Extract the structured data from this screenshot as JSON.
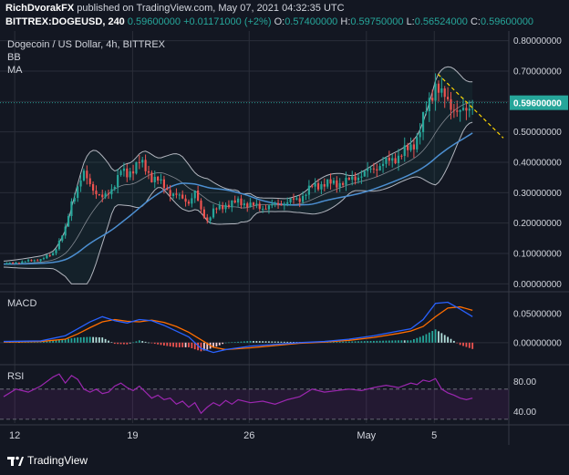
{
  "header": {
    "author": "RichDvorakFX",
    "published": "published on TradingView.com, May 07, 2021 04:32:35 UTC",
    "symbol": "BITTREX:DOGEUSD, 240",
    "price": "0.59600000",
    "change": "+0.01171000 (+2%)",
    "o_label": "O:",
    "o_value": "0.57400000",
    "h_label": "H:",
    "h_value": "0.59750000",
    "l_label": "L:",
    "l_value": "0.56524000",
    "c_label": "C:",
    "c_value": "0.59600000"
  },
  "footer": {
    "brand": "TradingView"
  },
  "colors": {
    "background": "#131722",
    "grid": "#2a2e39",
    "up": "#26a69a",
    "down": "#ef5350",
    "bb": "#b2b5be",
    "ma": "#4c8fd1",
    "macd": "#2962ff",
    "signal": "#ff6d00",
    "rsi": "#9c27b0",
    "trendline": "#ffd600",
    "price_label": "#26a69a"
  },
  "chart_data": [
    {
      "type": "candlestick",
      "title": "Dogecoin / US Dollar, 4h, BITTREX",
      "indicators": [
        "BB",
        "MA"
      ],
      "x_ticks": [
        "12",
        "19",
        "26",
        "May",
        "5"
      ],
      "y_ticks": [
        "0.80000000",
        "0.70000000",
        "0.60000000",
        "0.50000000",
        "0.40000000",
        "0.30000000",
        "0.20000000",
        "0.10000000",
        "0.00000000"
      ],
      "ylim": [
        -0.02,
        0.82
      ],
      "last_price": "0.59600000",
      "trendline": [
        [
          35.2,
          0.69
        ],
        [
          40.5,
          0.48
        ]
      ],
      "close_path": [
        [
          0,
          0.065
        ],
        [
          1,
          0.07
        ],
        [
          2,
          0.075
        ],
        [
          3,
          0.08
        ],
        [
          4,
          0.1
        ],
        [
          4.5,
          0.14
        ],
        [
          5,
          0.18
        ],
        [
          5.5,
          0.27
        ],
        [
          6,
          0.32
        ],
        [
          6.5,
          0.36
        ],
        [
          7,
          0.33
        ],
        [
          7.5,
          0.3
        ],
        [
          8,
          0.28
        ],
        [
          8.5,
          0.3
        ],
        [
          9,
          0.33
        ],
        [
          9.5,
          0.37
        ],
        [
          10,
          0.36
        ],
        [
          10.5,
          0.38
        ],
        [
          11,
          0.4
        ],
        [
          11.5,
          0.38
        ],
        [
          12,
          0.35
        ],
        [
          12.5,
          0.34
        ],
        [
          13,
          0.32
        ],
        [
          13.5,
          0.3
        ],
        [
          14,
          0.29
        ],
        [
          14.5,
          0.28
        ],
        [
          15,
          0.27
        ],
        [
          15.5,
          0.3
        ],
        [
          16,
          0.24
        ],
        [
          16.5,
          0.21
        ],
        [
          17,
          0.24
        ],
        [
          17.5,
          0.25
        ],
        [
          18,
          0.26
        ],
        [
          19,
          0.27
        ],
        [
          20,
          0.26
        ],
        [
          21,
          0.25
        ],
        [
          22,
          0.26
        ],
        [
          23,
          0.27
        ],
        [
          24,
          0.28
        ],
        [
          25,
          0.32
        ],
        [
          26,
          0.33
        ],
        [
          27,
          0.33
        ],
        [
          28,
          0.34
        ],
        [
          29,
          0.36
        ],
        [
          30,
          0.38
        ],
        [
          31,
          0.4
        ],
        [
          32,
          0.42
        ],
        [
          33,
          0.45
        ],
        [
          33.5,
          0.48
        ],
        [
          34,
          0.54
        ],
        [
          34.5,
          0.6
        ],
        [
          35,
          0.66
        ],
        [
          35.5,
          0.62
        ],
        [
          36,
          0.6
        ],
        [
          36.5,
          0.58
        ],
        [
          37,
          0.56
        ],
        [
          37.5,
          0.57
        ],
        [
          38,
          0.596
        ]
      ]
    },
    {
      "type": "line",
      "title": "MACD",
      "y_ticks": [
        "0.05000000",
        "0.00000000"
      ],
      "ylim": [
        -0.035,
        0.085
      ],
      "series": [
        {
          "name": "MACD",
          "points": [
            [
              0,
              0.002
            ],
            [
              3,
              0.003
            ],
            [
              5,
              0.012
            ],
            [
              6,
              0.024
            ],
            [
              7,
              0.036
            ],
            [
              8,
              0.045
            ],
            [
              9,
              0.038
            ],
            [
              10,
              0.034
            ],
            [
              11,
              0.04
            ],
            [
              12,
              0.038
            ],
            [
              13,
              0.03
            ],
            [
              14,
              0.02
            ],
            [
              15,
              0.01
            ],
            [
              16,
              -0.01
            ],
            [
              17,
              -0.017
            ],
            [
              18,
              -0.012
            ],
            [
              20,
              -0.006
            ],
            [
              22,
              -0.003
            ],
            [
              24,
              0.0
            ],
            [
              26,
              0.002
            ],
            [
              28,
              0.006
            ],
            [
              30,
              0.012
            ],
            [
              32,
              0.02
            ],
            [
              33,
              0.024
            ],
            [
              34,
              0.04
            ],
            [
              35,
              0.068
            ],
            [
              36,
              0.07
            ],
            [
              37,
              0.058
            ],
            [
              38,
              0.045
            ]
          ]
        },
        {
          "name": "Signal",
          "points": [
            [
              0,
              0.001
            ],
            [
              3,
              0.002
            ],
            [
              5,
              0.006
            ],
            [
              6,
              0.015
            ],
            [
              7,
              0.026
            ],
            [
              8,
              0.036
            ],
            [
              9,
              0.04
            ],
            [
              10,
              0.037
            ],
            [
              11,
              0.036
            ],
            [
              12,
              0.039
            ],
            [
              13,
              0.035
            ],
            [
              14,
              0.028
            ],
            [
              15,
              0.018
            ],
            [
              16,
              0.005
            ],
            [
              17,
              -0.008
            ],
            [
              18,
              -0.012
            ],
            [
              20,
              -0.009
            ],
            [
              22,
              -0.005
            ],
            [
              24,
              -0.001
            ],
            [
              26,
              0.001
            ],
            [
              28,
              0.004
            ],
            [
              30,
              0.009
            ],
            [
              32,
              0.016
            ],
            [
              33,
              0.02
            ],
            [
              34,
              0.028
            ],
            [
              35,
              0.045
            ],
            [
              36,
              0.06
            ],
            [
              37,
              0.062
            ],
            [
              38,
              0.056
            ]
          ]
        }
      ]
    },
    {
      "type": "line",
      "title": "RSI",
      "y_ticks": [
        "80.00",
        "40.00"
      ],
      "ylim": [
        25,
        100
      ],
      "series": [
        {
          "name": "RSI",
          "points": [
            [
              0,
              60
            ],
            [
              1,
              70
            ],
            [
              2,
              66
            ],
            [
              3,
              74
            ],
            [
              4,
              86
            ],
            [
              4.5,
              90
            ],
            [
              5,
              78
            ],
            [
              5.5,
              88
            ],
            [
              6,
              83
            ],
            [
              6.5,
              70
            ],
            [
              7,
              66
            ],
            [
              7.5,
              70
            ],
            [
              8,
              64
            ],
            [
              8.5,
              66
            ],
            [
              9,
              74
            ],
            [
              9.5,
              78
            ],
            [
              10,
              72
            ],
            [
              10.5,
              68
            ],
            [
              11,
              74
            ],
            [
              11.5,
              66
            ],
            [
              12,
              58
            ],
            [
              12.5,
              62
            ],
            [
              13,
              56
            ],
            [
              13.5,
              58
            ],
            [
              14,
              50
            ],
            [
              14.5,
              54
            ],
            [
              15,
              46
            ],
            [
              15.5,
              52
            ],
            [
              16,
              38
            ],
            [
              16.5,
              46
            ],
            [
              17,
              52
            ],
            [
              17.5,
              48
            ],
            [
              18,
              55
            ],
            [
              18.5,
              50
            ],
            [
              19,
              56
            ],
            [
              20,
              52
            ],
            [
              21,
              54
            ],
            [
              22,
              50
            ],
            [
              23,
              56
            ],
            [
              24,
              60
            ],
            [
              25,
              70
            ],
            [
              26,
              66
            ],
            [
              27,
              68
            ],
            [
              28,
              70
            ],
            [
              29,
              68
            ],
            [
              30,
              72
            ],
            [
              31,
              75
            ],
            [
              32,
              72
            ],
            [
              33,
              78
            ],
            [
              33.5,
              76
            ],
            [
              34,
              82
            ],
            [
              34.5,
              80
            ],
            [
              35,
              84
            ],
            [
              35.5,
              70
            ],
            [
              36,
              65
            ],
            [
              36.5,
              62
            ],
            [
              37,
              58
            ],
            [
              37.5,
              56
            ],
            [
              38,
              58
            ]
          ]
        }
      ]
    }
  ]
}
